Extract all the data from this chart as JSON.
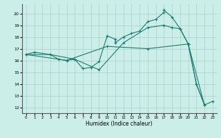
{
  "xlabel": "Humidex (Indice chaleur)",
  "background_color": "#cceee8",
  "grid_color": "#aacccc",
  "line_color": "#1a7a6e",
  "xlim": [
    -0.5,
    23.5
  ],
  "ylim": [
    11.5,
    20.8
  ],
  "yticks": [
    12,
    13,
    14,
    15,
    16,
    17,
    18,
    19,
    20
  ],
  "xticks": [
    0,
    1,
    2,
    3,
    4,
    5,
    6,
    7,
    8,
    9,
    10,
    11,
    12,
    13,
    14,
    15,
    16,
    17,
    18,
    19,
    20,
    21,
    22,
    23
  ],
  "line1_x": [
    0,
    1,
    3,
    4,
    5,
    6,
    7,
    8,
    9,
    10,
    11,
    11,
    12,
    13,
    14,
    15,
    16,
    17,
    17,
    18,
    19,
    20,
    21,
    22,
    23
  ],
  "line1_y": [
    16.5,
    16.7,
    16.5,
    16.1,
    16.0,
    16.1,
    15.3,
    15.4,
    15.9,
    18.1,
    17.8,
    17.5,
    18.0,
    18.3,
    18.5,
    19.3,
    19.5,
    20.1,
    20.3,
    19.7,
    18.7,
    17.4,
    14.0,
    12.2,
    12.5
  ],
  "line2_x": [
    0,
    3,
    6,
    9,
    12,
    15,
    17,
    18,
    19,
    20,
    22
  ],
  "line2_y": [
    16.5,
    16.5,
    16.1,
    15.2,
    17.5,
    18.8,
    19.0,
    18.8,
    18.7,
    17.4,
    12.2
  ],
  "line3_x": [
    0,
    5,
    10,
    15,
    20,
    21,
    22
  ],
  "line3_y": [
    16.5,
    16.0,
    17.2,
    17.0,
    17.4,
    14.0,
    12.2
  ]
}
